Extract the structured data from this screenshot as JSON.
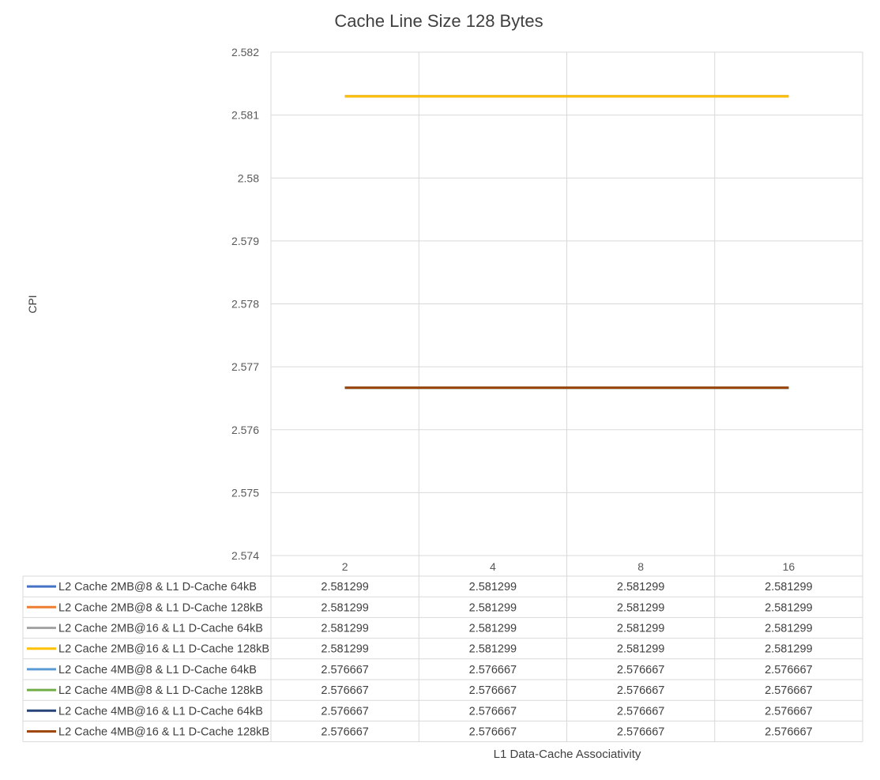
{
  "chart_data": {
    "type": "line",
    "title": "Cache Line Size 128 Bytes",
    "xlabel": "L1 Data-Cache Associativity",
    "ylabel": "CPI",
    "categories": [
      "2",
      "4",
      "8",
      "16"
    ],
    "ylim": [
      2.574,
      2.582
    ],
    "yticks": [
      "2.574",
      "2.575",
      "2.576",
      "2.577",
      "2.578",
      "2.579",
      "2.58",
      "2.581",
      "2.582"
    ],
    "grid": true,
    "legend": "data-table-below",
    "series": [
      {
        "name": "L2 Cache 2MB@8 & L1 D-Cache 64kB",
        "color": "#4472C4",
        "values": [
          2.581299,
          2.581299,
          2.581299,
          2.581299
        ],
        "labels": [
          "2.581299",
          "2.581299",
          "2.581299",
          "2.581299"
        ]
      },
      {
        "name": "L2 Cache 2MB@8 & L1 D-Cache 128kB",
        "color": "#ED7D31",
        "values": [
          2.581299,
          2.581299,
          2.581299,
          2.581299
        ],
        "labels": [
          "2.581299",
          "2.581299",
          "2.581299",
          "2.581299"
        ]
      },
      {
        "name": "L2 Cache 2MB@16 & L1 D-Cache 64kB",
        "color": "#A5A5A5",
        "values": [
          2.581299,
          2.581299,
          2.581299,
          2.581299
        ],
        "labels": [
          "2.581299",
          "2.581299",
          "2.581299",
          "2.581299"
        ]
      },
      {
        "name": "L2 Cache 2MB@16 & L1 D-Cache 128kB",
        "color": "#FFC000",
        "values": [
          2.581299,
          2.581299,
          2.581299,
          2.581299
        ],
        "labels": [
          "2.581299",
          "2.581299",
          "2.581299",
          "2.581299"
        ]
      },
      {
        "name": "L2 Cache 4MB@8 & L1 D-Cache 64kB",
        "color": "#5B9BD5",
        "values": [
          2.576667,
          2.576667,
          2.576667,
          2.576667
        ],
        "labels": [
          "2.576667",
          "2.576667",
          "2.576667",
          "2.576667"
        ]
      },
      {
        "name": "L2 Cache 4MB@8 & L1 D-Cache 128kB",
        "color": "#70AD47",
        "values": [
          2.576667,
          2.576667,
          2.576667,
          2.576667
        ],
        "labels": [
          "2.576667",
          "2.576667",
          "2.576667",
          "2.576667"
        ]
      },
      {
        "name": "L2 Cache 4MB@16 & L1 D-Cache 64kB",
        "color": "#264478",
        "values": [
          2.576667,
          2.576667,
          2.576667,
          2.576667
        ],
        "labels": [
          "2.576667",
          "2.576667",
          "2.576667",
          "2.576667"
        ]
      },
      {
        "name": "L2 Cache 4MB@16 & L1 D-Cache 128kB",
        "color": "#9E480E",
        "values": [
          2.576667,
          2.576667,
          2.576667,
          2.576667
        ],
        "labels": [
          "2.576667",
          "2.576667",
          "2.576667",
          "2.576667"
        ]
      }
    ]
  }
}
